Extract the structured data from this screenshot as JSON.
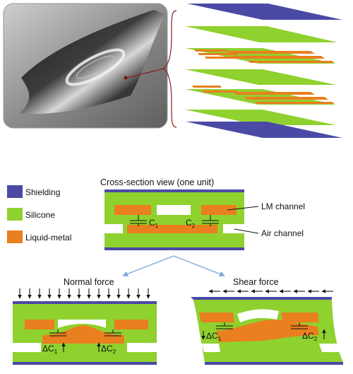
{
  "colors": {
    "shielding": "#4a4aa6",
    "silicone": "#8fd12f",
    "liquid_metal": "#e97f1e",
    "connector": "#8b1d1d",
    "arrow": "#7aa6d6"
  },
  "legend": [
    {
      "label": "Shielding",
      "color": "#4a4aa6"
    },
    {
      "label": "Silicone",
      "color": "#8fd12f"
    },
    {
      "label": "Liquid-metal",
      "color": "#e97f1e"
    }
  ],
  "cross_section": {
    "title": "Cross-section view (one unit)",
    "lm_channel_label": "LM channel",
    "air_channel_label": "Air channel",
    "c1": {
      "main": "C",
      "sub": "1"
    },
    "c2": {
      "main": "C",
      "sub": "2"
    }
  },
  "normal_force": {
    "title": "Normal force",
    "dc1": {
      "main": "ΔC",
      "sub": "1"
    },
    "dc2": {
      "main": "ΔC",
      "sub": "2"
    }
  },
  "shear_force": {
    "title": "Shear force",
    "dc1": {
      "main": "ΔC",
      "sub": "1"
    },
    "dc2": {
      "main": "ΔC",
      "sub": "2"
    }
  }
}
